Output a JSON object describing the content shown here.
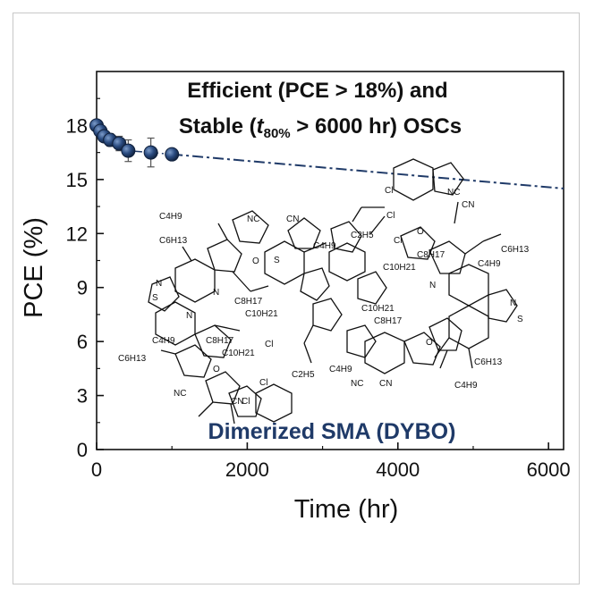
{
  "chart_data": {
    "type": "scatter",
    "xlabel": "Time (hr)",
    "ylabel": "PCE (%)",
    "xlim": [
      0,
      6200
    ],
    "ylim": [
      0,
      21
    ],
    "x_ticks": [
      0,
      2000,
      4000,
      6000
    ],
    "y_ticks": [
      0,
      3,
      6,
      9,
      12,
      15,
      18
    ],
    "x_tick_labels": [
      "0",
      "2000",
      "4000",
      "6000"
    ],
    "y_tick_labels": [
      "0",
      "3",
      "6",
      "9",
      "12",
      "15",
      "18"
    ],
    "series": [
      {
        "color": "#1f3a68",
        "marker": "circle",
        "points": [
          {
            "x": 0,
            "y": 18.0,
            "err": 0.3
          },
          {
            "x": 50,
            "y": 17.7,
            "err": 0.3
          },
          {
            "x": 100,
            "y": 17.4,
            "err": 0.3
          },
          {
            "x": 180,
            "y": 17.2,
            "err": 0.35
          },
          {
            "x": 300,
            "y": 17.0,
            "err": 0.4
          },
          {
            "x": 420,
            "y": 16.6,
            "err": 0.6
          },
          {
            "x": 720,
            "y": 16.5,
            "err": 0.8
          },
          {
            "x": 1000,
            "y": 16.4,
            "err": 0.3
          }
        ]
      }
    ],
    "trend_line": {
      "style": "dash-dot",
      "color": "#1f3a68",
      "x": [
        1000,
        6200
      ],
      "y": [
        16.4,
        14.5
      ]
    },
    "title_line1": "Efficient (PCE > 18%) and",
    "title_line2_pre": "Stable (",
    "title_line2_t": "t",
    "title_line2_sub": "80%",
    "title_line2_post": " > 6000 hr) OSCs",
    "annotation": "Dimerized SMA (DYBO)",
    "grid": false
  },
  "molecule": {
    "labels": [
      "C4H9",
      "C6H13",
      "NC",
      "CN",
      "O",
      "S",
      "N",
      "C8H17",
      "C10H21",
      "Cl",
      "C2H5"
    ]
  }
}
